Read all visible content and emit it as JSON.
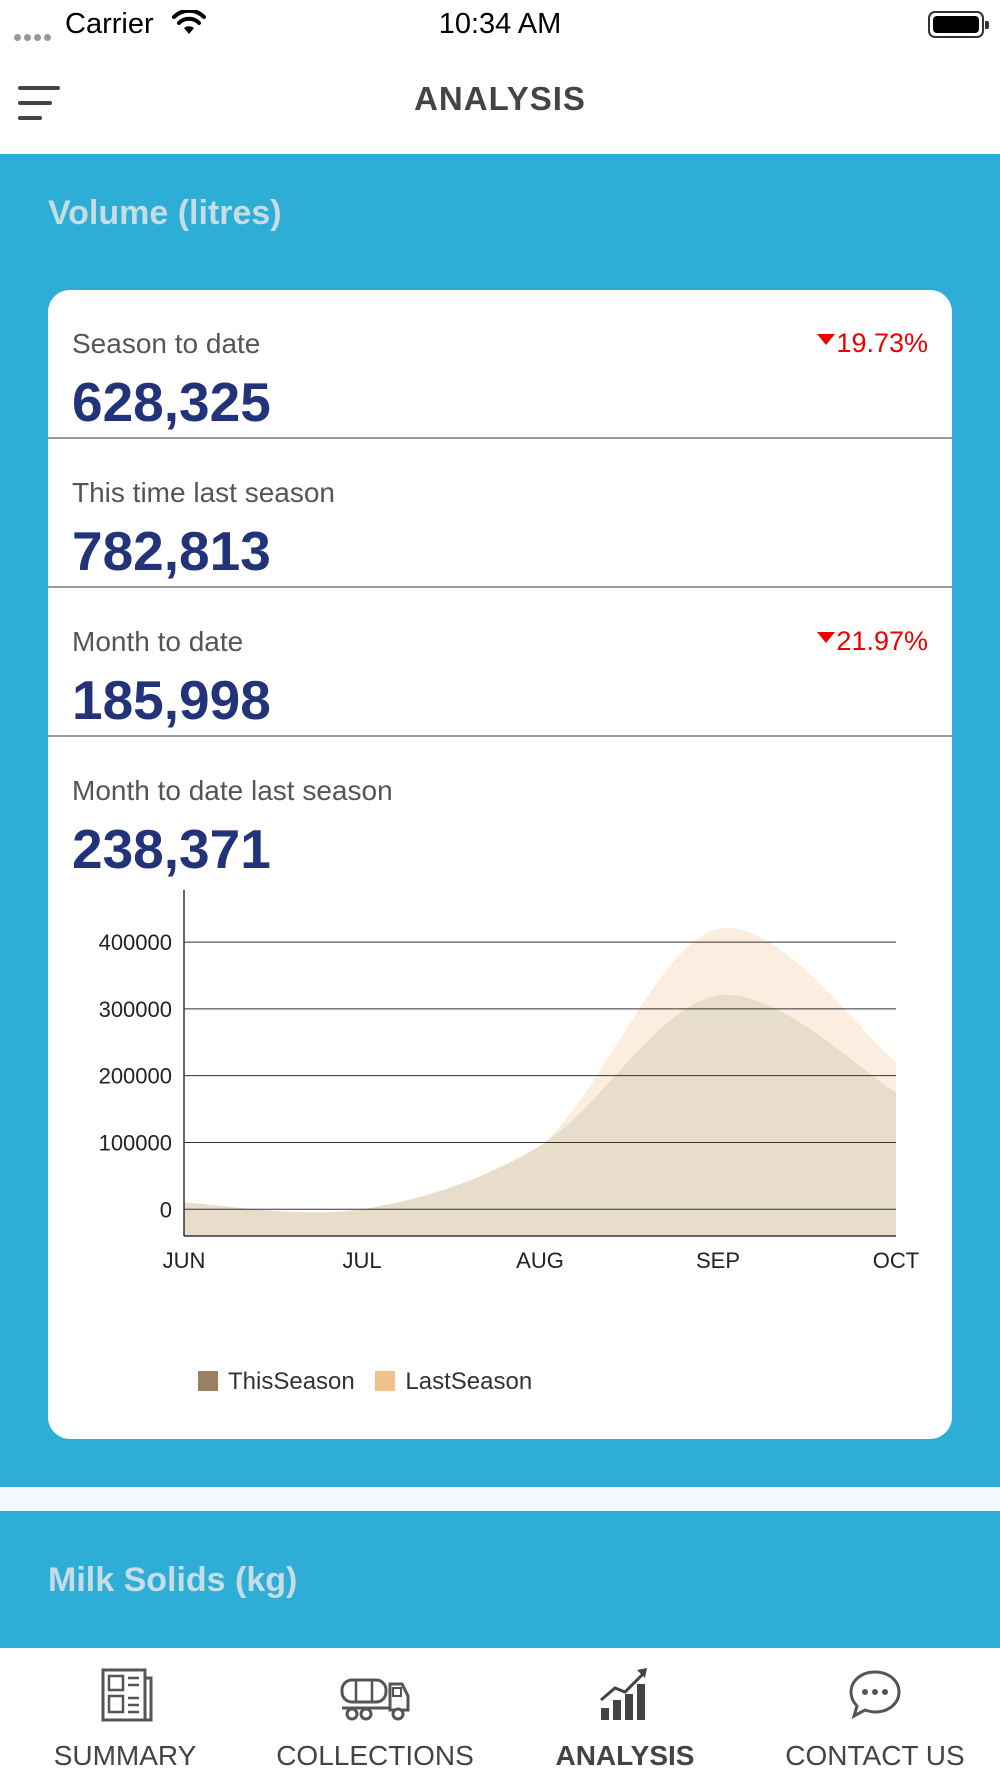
{
  "status_bar": {
    "carrier": "Carrier",
    "time": "10:34 AM"
  },
  "header": {
    "title": "ANALYSIS",
    "menu_icon": "hamburger-menu-icon"
  },
  "volume": {
    "title": "Volume (litres)",
    "stats": [
      {
        "label": "Season to date",
        "value": "628,325",
        "change": "19.73%",
        "change_direction": "down"
      },
      {
        "label": "This time last season",
        "value": "782,813",
        "change": ""
      },
      {
        "label": "Month to date",
        "value": "185,998",
        "change": "21.97%",
        "change_direction": "down"
      },
      {
        "label": "Month to date last season",
        "value": "238,371",
        "change": ""
      }
    ]
  },
  "milk_solids": {
    "title": "Milk Solids (kg)"
  },
  "colors": {
    "accent_section": "#2eaed7",
    "value_text": "#22337a",
    "negative": "#e00000",
    "this_season_swatch": "#9a8061",
    "last_season_swatch": "#f2c08a",
    "this_season_area": "#e8dccb",
    "last_season_area": "#fbeee0"
  },
  "chart_data": {
    "type": "area",
    "categories": [
      "JUN",
      "JUL",
      "AUG",
      "SEP",
      "OCT"
    ],
    "series": [
      {
        "name": "ThisSeason",
        "values": [
          10000,
          0,
          95000,
          320000,
          175000
        ]
      },
      {
        "name": "LastSeason",
        "values": [
          10000,
          0,
          95000,
          420000,
          220000
        ]
      }
    ],
    "y_ticks": [
      "0",
      "100000",
      "200000",
      "300000",
      "400000"
    ],
    "ylim": [
      -40000,
      460000
    ],
    "grid": "horizontal",
    "legend": "bottom"
  },
  "tabs": [
    {
      "label": "SUMMARY",
      "icon": "newspaper-icon",
      "active": false
    },
    {
      "label": "COLLECTIONS",
      "icon": "tanker-truck-icon",
      "active": false
    },
    {
      "label": "ANALYSIS",
      "icon": "bar-chart-trend-icon",
      "active": true
    },
    {
      "label": "CONTACT US",
      "icon": "chat-bubble-icon",
      "active": false
    }
  ]
}
